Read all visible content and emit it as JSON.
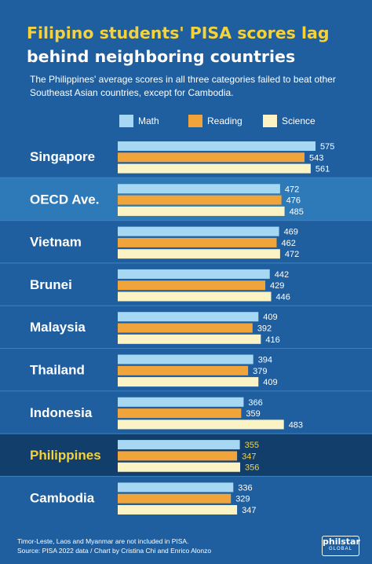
{
  "header": {
    "title_line1": "Filipino students' PISA scores lag",
    "title_line2": "behind neighboring countries",
    "subtitle": "The Philippines' average scores in all three categories failed to beat other Southeast Asian countries, except for Cambodia."
  },
  "colors": {
    "background": "#1f5fa0",
    "band_highlight": "#2e7ab8",
    "band_dark": "#123e6c",
    "title_accent": "#f5d23c",
    "philippines_label": "#f5d23c",
    "math": "#a6d8f3",
    "reading": "#f0a43a",
    "science": "#fcf3c4"
  },
  "chart_data": {
    "type": "bar",
    "orientation": "horizontal",
    "categories": [
      "Singapore",
      "OECD Ave.",
      "Vietnam",
      "Brunei",
      "Malaysia",
      "Thailand",
      "Indonesia",
      "Philippines",
      "Cambodia"
    ],
    "series": [
      {
        "name": "Math",
        "values": [
          575,
          472,
          469,
          442,
          409,
          394,
          366,
          355,
          336
        ]
      },
      {
        "name": "Reading",
        "values": [
          543,
          476,
          462,
          429,
          392,
          379,
          359,
          347,
          329
        ]
      },
      {
        "name": "Science",
        "values": [
          561,
          485,
          472,
          446,
          416,
          409,
          483,
          356,
          347
        ]
      }
    ],
    "legend_position": "top",
    "grid": false,
    "highlighted_rows": [
      "OECD Ave.",
      "Philippines"
    ]
  },
  "footer": {
    "note": "Timor-Leste, Laos and Myanmar are not included in PISA.",
    "source": "Source: PISA 2022 data / Chart by Cristina Chi and Enrico Alonzo"
  },
  "brand": {
    "name": "philstar",
    "sub": "GLOBAL"
  }
}
